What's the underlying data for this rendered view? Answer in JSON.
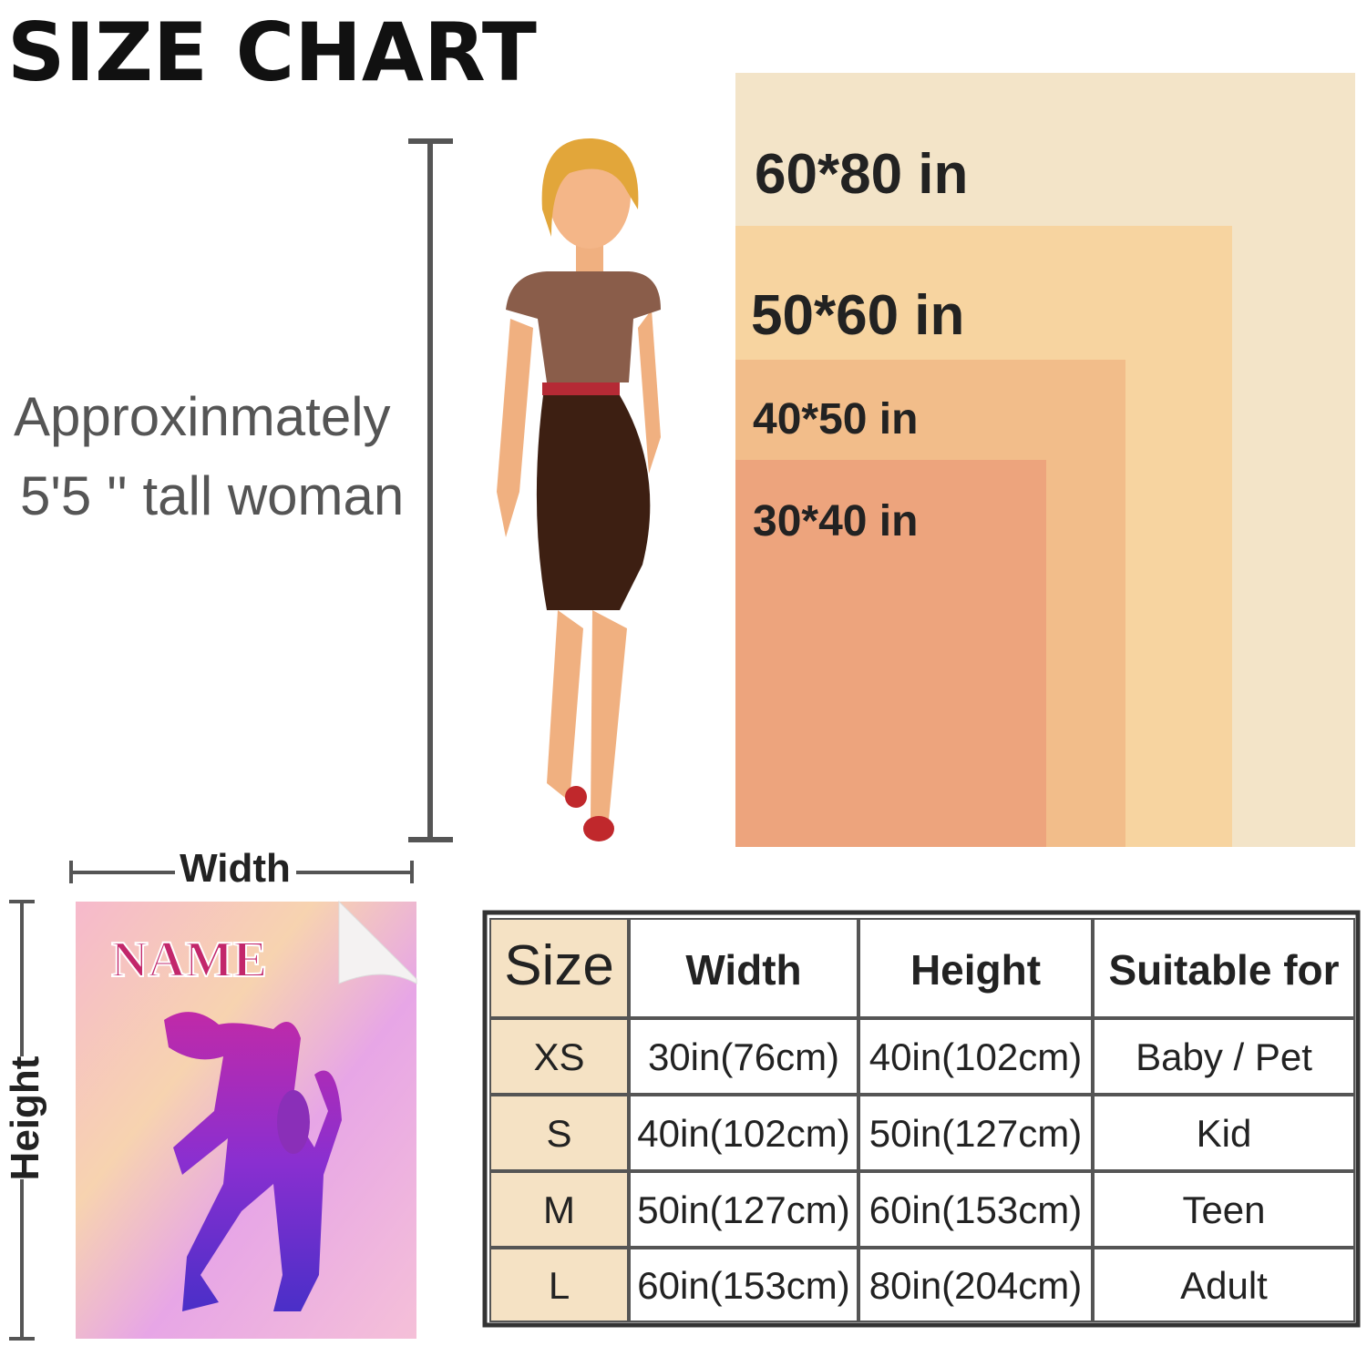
{
  "header": {
    "title": "SIZE CHART"
  },
  "note": {
    "lines": [
      "Approxinmately",
      "5'5 '' tall woman"
    ]
  },
  "sizes": [
    {
      "label": "60*80 in"
    },
    {
      "label": "50*60 in"
    },
    {
      "label": "40*50 in"
    },
    {
      "label": "30*40 in"
    }
  ],
  "dimensions": {
    "width": "Width",
    "height": "Height"
  },
  "blanket": {
    "text": "NAME"
  },
  "table": {
    "columns": [
      "Size",
      "Width",
      "Height",
      "Suitable for"
    ],
    "rows": [
      [
        "XS",
        "30in(76cm)",
        "40in(102cm)",
        "Baby / Pet"
      ],
      [
        "S",
        "40in(102cm)",
        "50in(127cm)",
        "Kid"
      ],
      [
        "M",
        "50in(127cm)",
        "60in(153cm)",
        "Teen"
      ],
      [
        "L",
        "60in(153cm)",
        "80in(204cm)",
        "Adult"
      ]
    ]
  }
}
